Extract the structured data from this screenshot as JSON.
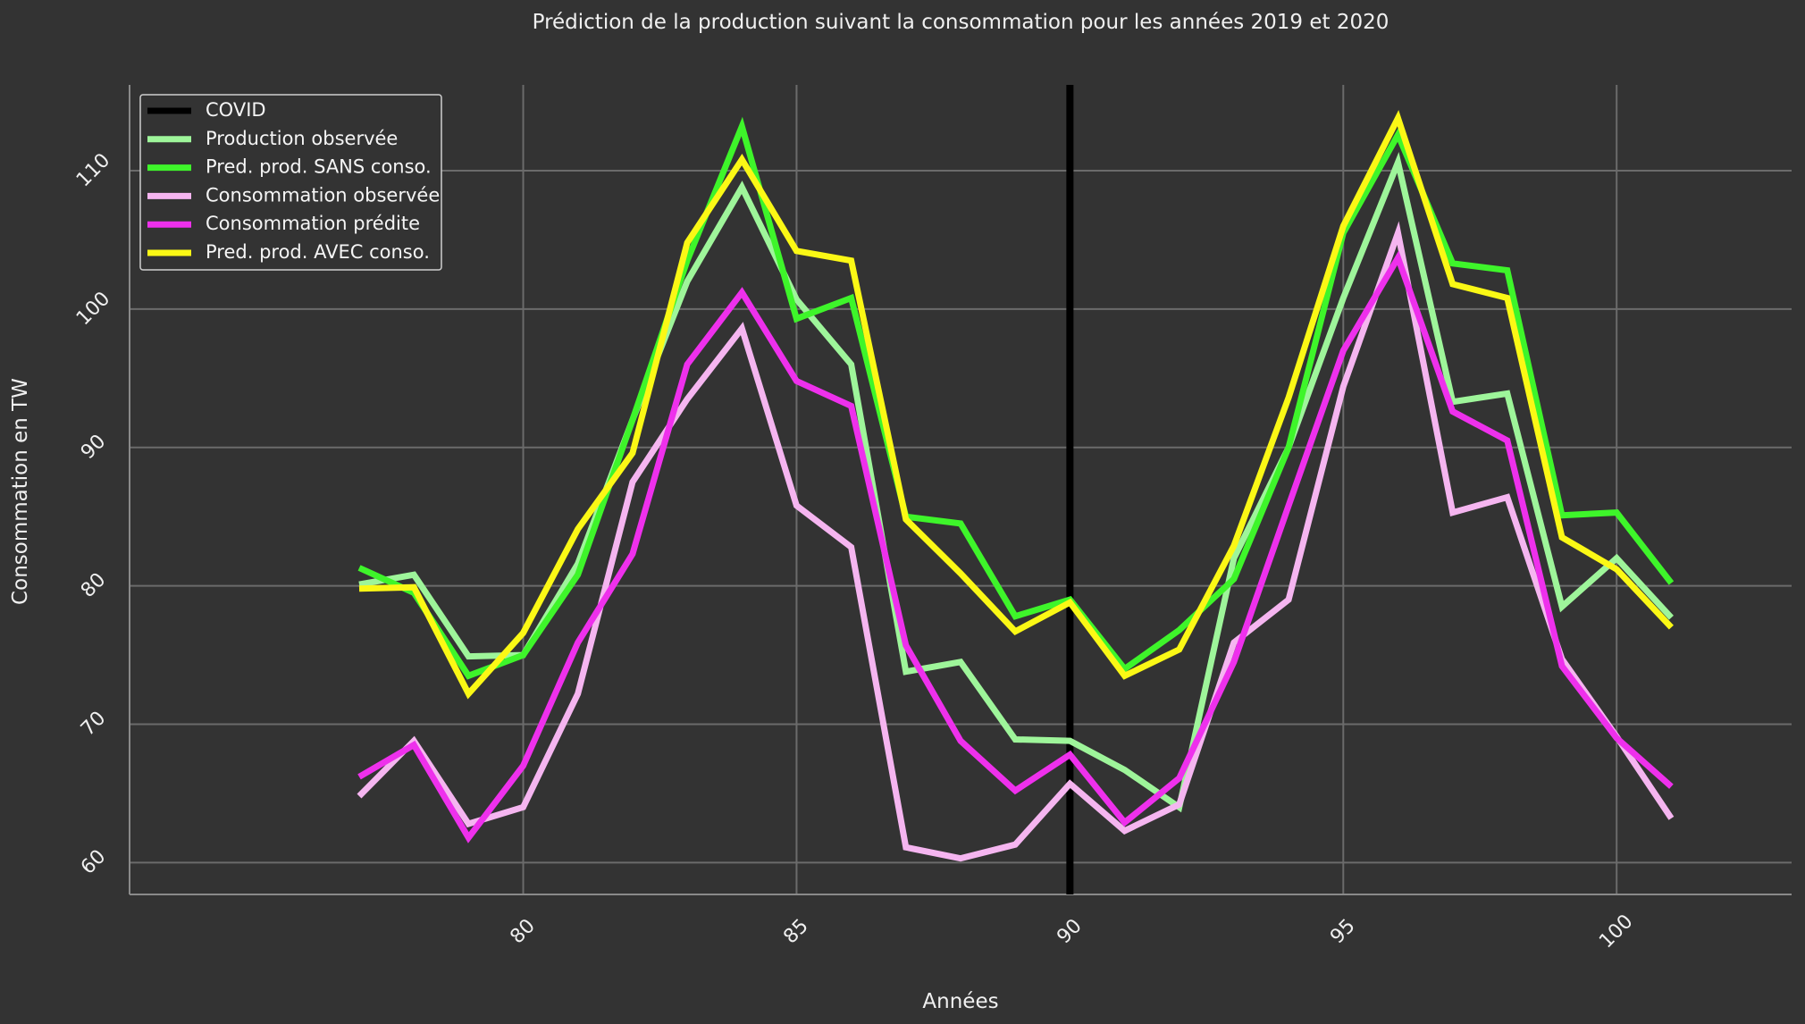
{
  "chart_data": {
    "type": "line",
    "title": "Prédiction de la production suivant la consommation pour les années 2019 et 2020",
    "xlabel": "Années",
    "ylabel": "Consommation en TW",
    "xlim": [
      72.8,
      103.2
    ],
    "ylim": [
      57.7,
      116.2
    ],
    "xticks": [
      80,
      85,
      90,
      95,
      100
    ],
    "yticks": [
      60,
      70,
      80,
      90,
      100,
      110
    ],
    "grid": true,
    "legend_position": "top-left",
    "background": "#333333",
    "grid_color": "#6b6b6b",
    "x": [
      77,
      78,
      79,
      80,
      81,
      82,
      83,
      84,
      85,
      86,
      87,
      88,
      89,
      90,
      91,
      92,
      93,
      94,
      95,
      96,
      97,
      98,
      99,
      100,
      101
    ],
    "covid": {
      "name": "COVID",
      "x": 90,
      "color": "#000000"
    },
    "series": [
      {
        "name": "Production observée",
        "color": "#9ef59a",
        "values": [
          80.1,
          80.8,
          74.9,
          75.0,
          81.6,
          92.0,
          102.0,
          108.8,
          100.7,
          96.0,
          73.8,
          74.5,
          68.9,
          68.8,
          66.7,
          64.0,
          82.0,
          90.0,
          100.8,
          110.6,
          93.3,
          93.9,
          78.5,
          82.0,
          77.7
        ]
      },
      {
        "name": "Pred. prod. SANS conso.",
        "color": "#3ef52a",
        "values": [
          81.3,
          79.5,
          73.5,
          75.0,
          80.8,
          92.0,
          103.5,
          113.2,
          99.3,
          100.8,
          85.0,
          84.5,
          77.8,
          79.0,
          74.0,
          76.8,
          80.5,
          90.0,
          105.5,
          112.6,
          103.3,
          102.8,
          85.1,
          85.3,
          80.2
        ]
      },
      {
        "name": "Consommation observée",
        "color": "#f5b5f0",
        "values": [
          64.8,
          68.8,
          62.8,
          64.0,
          72.2,
          87.5,
          93.5,
          98.6,
          85.8,
          82.8,
          61.1,
          60.3,
          61.3,
          65.7,
          62.3,
          64.2,
          75.9,
          79.0,
          94.4,
          105.5,
          85.3,
          86.4,
          74.7,
          69.1,
          63.2
        ]
      },
      {
        "name": "Consommation prédite",
        "color": "#ee30ec",
        "values": [
          66.2,
          68.5,
          61.8,
          67.0,
          75.9,
          82.3,
          96.0,
          101.2,
          94.8,
          93.0,
          75.7,
          68.8,
          65.2,
          67.8,
          62.9,
          66.1,
          74.5,
          85.8,
          97.0,
          103.7,
          92.6,
          90.5,
          74.2,
          69.0,
          65.5
        ]
      },
      {
        "name": "Pred. prod. AVEC conso.",
        "color": "#fbf815",
        "values": [
          79.8,
          79.9,
          72.2,
          76.6,
          84.1,
          89.6,
          104.8,
          110.8,
          104.2,
          103.5,
          84.8,
          80.9,
          76.7,
          78.8,
          73.5,
          75.4,
          82.9,
          93.6,
          106.0,
          113.8,
          101.8,
          100.8,
          83.5,
          81.2,
          77.0
        ]
      }
    ]
  }
}
